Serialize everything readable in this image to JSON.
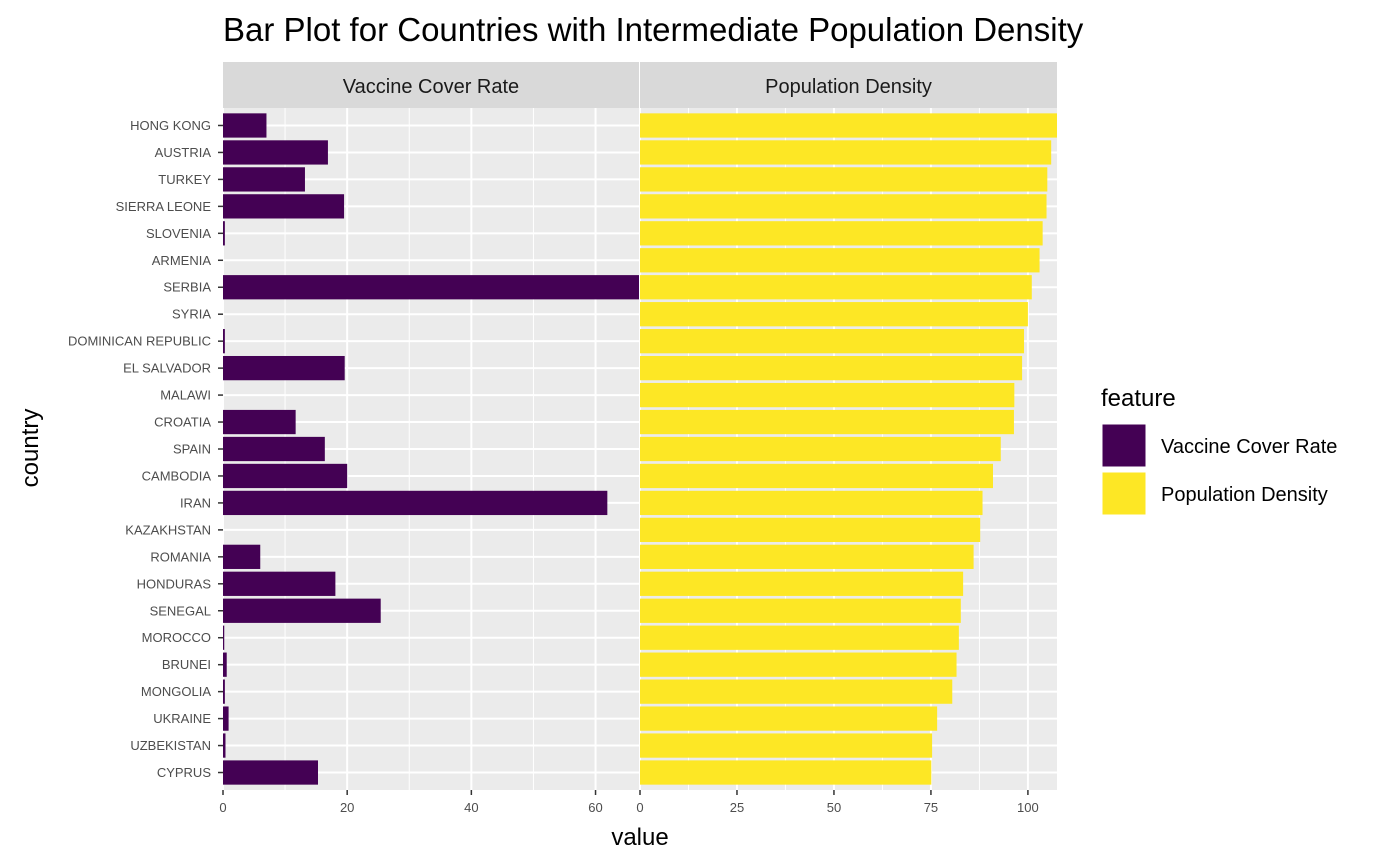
{
  "chart_data": {
    "type": "bar",
    "orientation": "horizontal",
    "title": "Bar Plot for Countries with Intermediate Population Density",
    "xlabel": "value",
    "ylabel": "country",
    "grid": true,
    "legend": {
      "title": "feature",
      "position": "right"
    },
    "categories": [
      "HONG KONG",
      "AUSTRIA",
      "TURKEY",
      "SIERRA LEONE",
      "SLOVENIA",
      "ARMENIA",
      "SERBIA",
      "SYRIA",
      "DOMINICAN REPUBLIC",
      "EL SALVADOR",
      "MALAWI",
      "CROATIA",
      "SPAIN",
      "CAMBODIA",
      "IRAN",
      "KAZAKHSTAN",
      "ROMANIA",
      "HONDURAS",
      "SENEGAL",
      "MOROCCO",
      "BRUNEI",
      "MONGOLIA",
      "UKRAINE",
      "UZBEKISTAN",
      "CYPRUS"
    ],
    "series": [
      {
        "name": "Vaccine Cover Rate",
        "color": "#440154",
        "xlim": [
          0,
          67
        ],
        "ticks": [
          0,
          20,
          40,
          60
        ],
        "values": [
          7.0,
          16.9,
          13.2,
          19.5,
          0.3,
          0.0,
          67.0,
          0.0,
          0.3,
          19.6,
          0.0,
          11.7,
          16.4,
          20.0,
          61.9,
          0.0,
          6.0,
          18.1,
          25.4,
          0.2,
          0.6,
          0.3,
          0.9,
          0.4,
          15.3
        ]
      },
      {
        "name": "Population Density",
        "color": "#FDE725",
        "xlim": [
          0,
          107.5
        ],
        "ticks": [
          0,
          25,
          50,
          75,
          100
        ],
        "values": [
          107.5,
          106.0,
          105.0,
          104.8,
          103.8,
          103.0,
          101.0,
          100.0,
          99.0,
          98.5,
          96.5,
          96.4,
          93.0,
          91.0,
          88.3,
          87.7,
          86.0,
          83.3,
          82.7,
          82.2,
          81.6,
          80.5,
          76.6,
          75.3,
          75.1
        ]
      }
    ]
  }
}
